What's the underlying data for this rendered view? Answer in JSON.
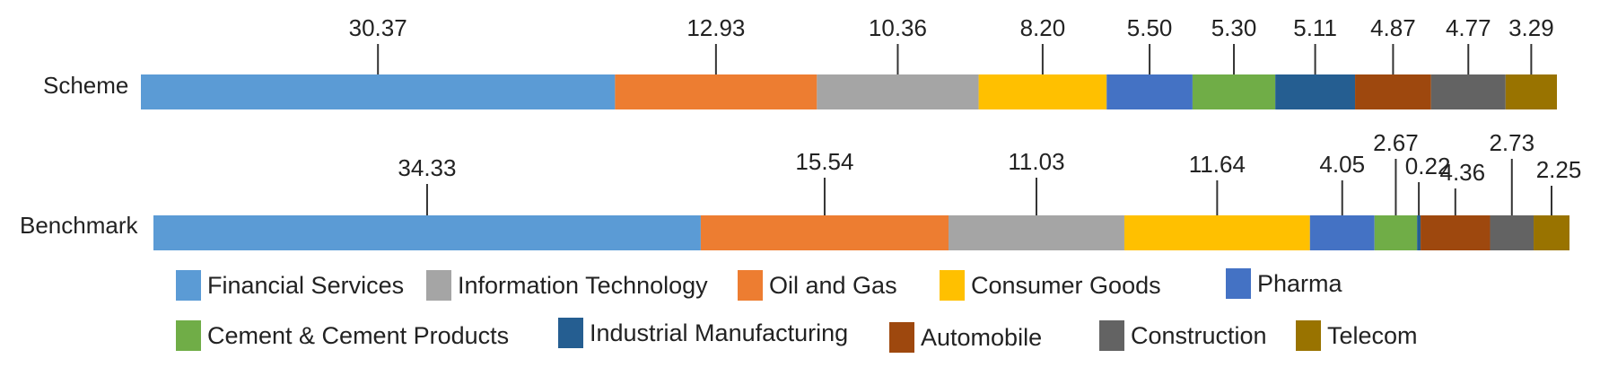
{
  "chart_data": {
    "type": "bar",
    "orientation": "horizontal",
    "stacked": true,
    "categories": [
      "Scheme",
      "Benchmark"
    ],
    "series": [
      {
        "name": "Financial Services",
        "color": "#5B9BD5",
        "values": [
          30.37,
          34.33
        ]
      },
      {
        "name": "Oil and Gas",
        "color": "#ED7D31",
        "values": [
          12.93,
          15.54
        ]
      },
      {
        "name": "Information Technology",
        "color": "#A5A5A5",
        "values": [
          10.36,
          11.03
        ]
      },
      {
        "name": "Consumer Goods",
        "color": "#FFC000",
        "values": [
          8.2,
          11.64
        ]
      },
      {
        "name": "Pharma",
        "color": "#4472C4",
        "values": [
          5.5,
          4.05
        ]
      },
      {
        "name": "Cement & Cement Products",
        "color": "#70AD47",
        "values": [
          5.3,
          2.67
        ]
      },
      {
        "name": "Industrial Manufacturing",
        "color": "#255E91",
        "values": [
          5.11,
          0.22
        ]
      },
      {
        "name": "Automobile",
        "color": "#9E480E",
        "values": [
          4.87,
          4.36
        ]
      },
      {
        "name": "Construction",
        "color": "#636363",
        "values": [
          4.77,
          2.73
        ]
      },
      {
        "name": "Telecom",
        "color": "#997300",
        "values": [
          3.29,
          2.25
        ]
      }
    ],
    "data_labels": {
      "Scheme": [
        "30.37",
        "12.93",
        "10.36",
        "8.20",
        "5.50",
        "5.30",
        "5.11",
        "4.87",
        "4.77",
        "3.29"
      ],
      "Benchmark": [
        "34.33",
        "15.54",
        "11.03",
        "11.64",
        "4.05",
        "2.67",
        "0.22",
        "4.36",
        "2.73",
        "2.25"
      ]
    },
    "legend_order": [
      "Financial Services",
      "Information Technology",
      "Oil and Gas",
      "Consumer Goods",
      "Pharma",
      "Cement & Cement Products",
      "Industrial Manufacturing",
      "Automobile",
      "Construction",
      "Telecom"
    ],
    "legend_position": "bottom",
    "grid": false,
    "title": "",
    "xlabel": "",
    "ylabel": ""
  }
}
